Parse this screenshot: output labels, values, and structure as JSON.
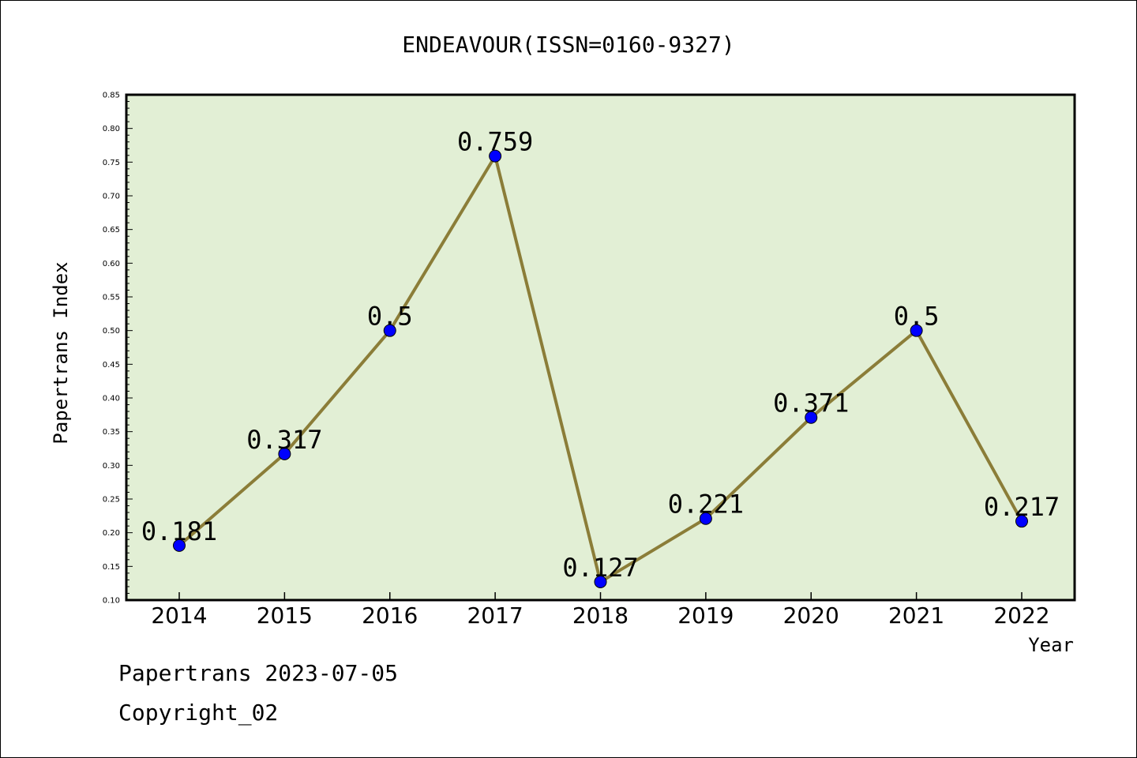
{
  "chart_data": {
    "type": "line",
    "title": "ENDEAVOUR(ISSN=0160-9327)",
    "xlabel": "Year",
    "ylabel": "Papertrans Index",
    "categories": [
      "2014",
      "2015",
      "2016",
      "2017",
      "2018",
      "2019",
      "2020",
      "2021",
      "2022"
    ],
    "values": [
      0.181,
      0.317,
      0.5,
      0.759,
      0.127,
      0.221,
      0.371,
      0.5,
      0.217
    ],
    "data_labels": [
      "0.181",
      "0.317",
      "0.5",
      "0.759",
      "0.127",
      "0.221",
      "0.371",
      "0.5",
      "0.217"
    ],
    "ylim": [
      0.1,
      0.85
    ],
    "yticks": [
      "0.10",
      "0.15",
      "0.20",
      "0.25",
      "0.30",
      "0.35",
      "0.40",
      "0.45",
      "0.50",
      "0.55",
      "0.60",
      "0.65",
      "0.70",
      "0.75",
      "0.80",
      "0.85"
    ],
    "grid": false,
    "legend": "none",
    "colors": {
      "plot_background": "#e2efd5",
      "line": "#8b7d38",
      "marker": "#0000ff",
      "axis": "#000000"
    }
  },
  "footer": {
    "date_text": "Papertrans 2023-07-05",
    "copyright_text": "Copyright_02"
  }
}
